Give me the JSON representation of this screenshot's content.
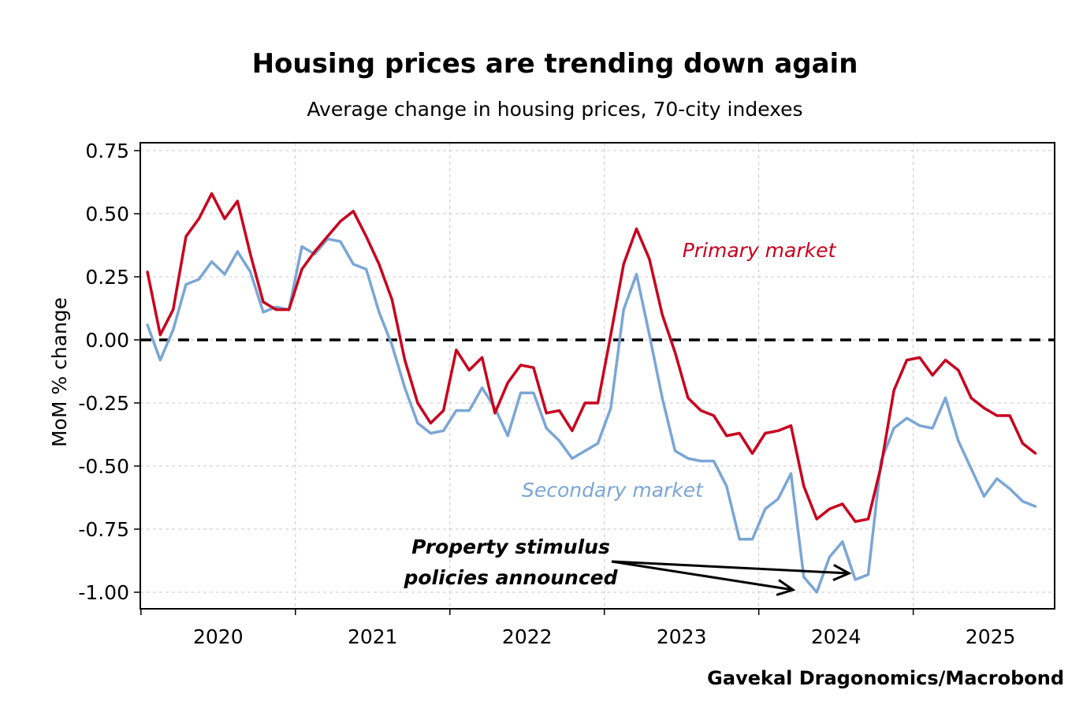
{
  "chart_data": {
    "type": "line",
    "title": "Housing prices are trending down again",
    "subtitle": "Average change in housing prices, 70-city indexes",
    "xlabel": "",
    "ylabel": "MoM % change",
    "ylim": [
      -1.0,
      0.75
    ],
    "yticks": [
      "0.75",
      "0.50",
      "0.25",
      "0.00",
      "-0.25",
      "-0.50",
      "-0.75",
      "-1.00"
    ],
    "ytick_values": [
      0.75,
      0.5,
      0.25,
      0,
      -0.25,
      -0.5,
      -0.75,
      -1.0
    ],
    "xticks": [
      "2020",
      "2021",
      "2022",
      "2023",
      "2024",
      "2025"
    ],
    "x_start": "Jan 2020",
    "x_frequency": "monthly",
    "grid": true,
    "zero_line": "dashed black",
    "series": [
      {
        "name": "Primary market",
        "color": "#c8001e",
        "values": [
          0.27,
          0.02,
          0.12,
          0.41,
          0.48,
          0.58,
          0.48,
          0.55,
          0.34,
          0.15,
          0.12,
          0.12,
          0.28,
          0.35,
          0.41,
          0.47,
          0.51,
          0.41,
          0.3,
          0.16,
          -0.08,
          -0.25,
          -0.33,
          -0.28,
          -0.04,
          -0.12,
          -0.07,
          -0.29,
          -0.17,
          -0.1,
          -0.11,
          -0.29,
          -0.28,
          -0.36,
          -0.25,
          -0.25,
          0.02,
          0.3,
          0.44,
          0.32,
          0.1,
          -0.05,
          -0.23,
          -0.28,
          -0.3,
          -0.38,
          -0.37,
          -0.45,
          -0.37,
          -0.36,
          -0.34,
          -0.58,
          -0.71,
          -0.67,
          -0.65,
          -0.72,
          -0.71,
          -0.5,
          -0.2,
          -0.08,
          -0.07,
          -0.14,
          -0.08,
          -0.12,
          -0.23,
          -0.27,
          -0.3,
          -0.3,
          -0.41,
          -0.45
        ]
      },
      {
        "name": "Secondary market",
        "color": "#7aa6d6",
        "values": [
          0.06,
          -0.08,
          0.04,
          0.22,
          0.24,
          0.31,
          0.26,
          0.35,
          0.27,
          0.11,
          0.13,
          0.12,
          0.37,
          0.34,
          0.4,
          0.39,
          0.3,
          0.28,
          0.11,
          -0.02,
          -0.19,
          -0.33,
          -0.37,
          -0.36,
          -0.28,
          -0.28,
          -0.19,
          -0.27,
          -0.38,
          -0.21,
          -0.21,
          -0.35,
          -0.4,
          -0.47,
          -0.44,
          -0.41,
          -0.27,
          0.12,
          0.26,
          0.02,
          -0.23,
          -0.44,
          -0.47,
          -0.48,
          -0.48,
          -0.58,
          -0.79,
          -0.79,
          -0.67,
          -0.63,
          -0.53,
          -0.94,
          -1.0,
          -0.86,
          -0.8,
          -0.95,
          -0.93,
          -0.48,
          -0.35,
          -0.31,
          -0.34,
          -0.35,
          -0.23,
          -0.4,
          -0.51,
          -0.62,
          -0.55,
          -0.59,
          -0.64,
          -0.66
        ]
      }
    ],
    "annotations": {
      "primary_label": "Primary market",
      "secondary_label": "Secondary market",
      "stimulus_line1": "Property stimulus",
      "stimulus_line2": "policies announced",
      "stimulus_months": [
        52,
        55
      ]
    },
    "source": "Gavekal Dragonomics/Macrobond"
  }
}
